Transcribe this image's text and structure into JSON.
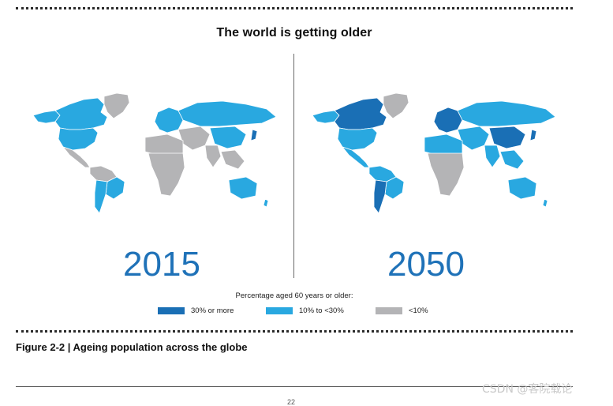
{
  "figure": {
    "title": "The world is getting older",
    "caption": "Figure 2-2 | Ageing population across the globe",
    "page_number": "22"
  },
  "maps": [
    {
      "year": "2015"
    },
    {
      "year": "2050"
    }
  ],
  "legend": {
    "title": "Percentage aged 60 years or older:",
    "items": [
      {
        "label": "30% or more",
        "color": "#1a6fb5"
      },
      {
        "label": "10% to <30%",
        "color": "#29a8e0"
      },
      {
        "label": "<10%",
        "color": "#b4b4b6"
      }
    ]
  },
  "watermark": "CSDN @客院载论"
}
